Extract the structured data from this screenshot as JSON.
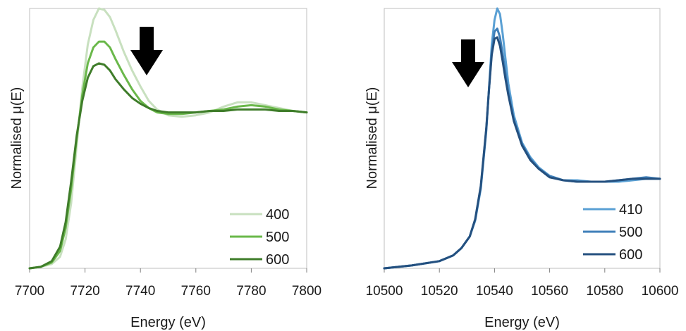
{
  "chart_data": [
    {
      "type": "line",
      "xlabel": "Energy (eV)",
      "ylabel": "Normalised μ(E)",
      "xlim": [
        7700,
        7800
      ],
      "ylim": [
        0,
        1.8
      ],
      "xticks": [
        "7700",
        "7720",
        "7740",
        "7760",
        "7780",
        "7800"
      ],
      "grid": false,
      "legend": "bottom-right",
      "annotation": "down-arrow-near-7742",
      "series": [
        {
          "name": "400",
          "color": "#c8e0bf",
          "x": [
            7700,
            7704,
            7708,
            7711,
            7713,
            7715,
            7717,
            7719,
            7721,
            7723,
            7725,
            7727,
            7729,
            7731,
            7734,
            7737,
            7740,
            7743,
            7746,
            7750,
            7755,
            7760,
            7765,
            7770,
            7775,
            7780,
            7785,
            7790,
            7795,
            7800
          ],
          "y": [
            0.0,
            0.01,
            0.03,
            0.08,
            0.2,
            0.45,
            0.85,
            1.25,
            1.55,
            1.72,
            1.8,
            1.79,
            1.74,
            1.65,
            1.5,
            1.37,
            1.26,
            1.16,
            1.1,
            1.06,
            1.05,
            1.06,
            1.08,
            1.12,
            1.15,
            1.15,
            1.13,
            1.11,
            1.09,
            1.08
          ]
        },
        {
          "name": "500",
          "color": "#6ab84a",
          "x": [
            7700,
            7704,
            7708,
            7711,
            7713,
            7715,
            7717,
            7719,
            7721,
            7723,
            7725,
            7727,
            7729,
            7731,
            7734,
            7737,
            7740,
            7743,
            7746,
            7750,
            7755,
            7760,
            7765,
            7770,
            7775,
            7780,
            7785,
            7790,
            7795,
            7800
          ],
          "y": [
            0.0,
            0.01,
            0.04,
            0.12,
            0.28,
            0.55,
            0.9,
            1.2,
            1.42,
            1.53,
            1.57,
            1.57,
            1.53,
            1.45,
            1.34,
            1.24,
            1.16,
            1.11,
            1.08,
            1.07,
            1.07,
            1.08,
            1.09,
            1.1,
            1.12,
            1.13,
            1.12,
            1.1,
            1.09,
            1.08
          ]
        },
        {
          "name": "600",
          "color": "#3f7d2a",
          "x": [
            7700,
            7704,
            7708,
            7711,
            7713,
            7715,
            7717,
            7719,
            7721,
            7723,
            7725,
            7727,
            7729,
            7731,
            7734,
            7737,
            7740,
            7743,
            7746,
            7750,
            7755,
            7760,
            7765,
            7770,
            7775,
            7780,
            7785,
            7790,
            7795,
            7800
          ],
          "y": [
            0.0,
            0.01,
            0.05,
            0.15,
            0.32,
            0.6,
            0.92,
            1.16,
            1.32,
            1.4,
            1.42,
            1.41,
            1.37,
            1.31,
            1.24,
            1.18,
            1.14,
            1.11,
            1.09,
            1.08,
            1.08,
            1.08,
            1.09,
            1.09,
            1.1,
            1.1,
            1.1,
            1.09,
            1.09,
            1.08
          ]
        }
      ]
    },
    {
      "type": "line",
      "xlabel": "Energy (eV)",
      "ylabel": "Normalised μ(E)",
      "xlim": [
        10500,
        10600
      ],
      "ylim": [
        0,
        1.8
      ],
      "xticks": [
        "10500",
        "10520",
        "10540",
        "10560",
        "10580",
        "10600"
      ],
      "grid": false,
      "legend": "bottom-right",
      "annotation": "down-arrow-near-10530",
      "series": [
        {
          "name": "410",
          "color": "#5aa0d4",
          "x": [
            10500,
            10510,
            10520,
            10525,
            10528,
            10531,
            10533,
            10535,
            10537,
            10538,
            10539,
            10540,
            10541,
            10542,
            10543,
            10544,
            10545,
            10547,
            10550,
            10553,
            10556,
            10560,
            10565,
            10570,
            10575,
            10580,
            10585,
            10590,
            10595,
            10600
          ],
          "y": [
            0.0,
            0.02,
            0.05,
            0.09,
            0.14,
            0.22,
            0.33,
            0.55,
            0.95,
            1.25,
            1.55,
            1.72,
            1.8,
            1.76,
            1.62,
            1.45,
            1.28,
            1.06,
            0.87,
            0.77,
            0.7,
            0.64,
            0.61,
            0.61,
            0.6,
            0.6,
            0.6,
            0.61,
            0.62,
            0.62
          ]
        },
        {
          "name": "500",
          "color": "#3f7fb9",
          "x": [
            10500,
            10510,
            10520,
            10525,
            10528,
            10531,
            10533,
            10535,
            10537,
            10538,
            10539,
            10540,
            10541,
            10542,
            10543,
            10544,
            10545,
            10547,
            10550,
            10553,
            10556,
            10560,
            10565,
            10570,
            10575,
            10580,
            10585,
            10590,
            10595,
            10600
          ],
          "y": [
            0.0,
            0.02,
            0.05,
            0.09,
            0.14,
            0.22,
            0.34,
            0.56,
            0.96,
            1.24,
            1.5,
            1.64,
            1.66,
            1.6,
            1.48,
            1.35,
            1.22,
            1.03,
            0.86,
            0.76,
            0.69,
            0.64,
            0.61,
            0.6,
            0.6,
            0.6,
            0.61,
            0.62,
            0.63,
            0.62
          ]
        },
        {
          "name": "600",
          "color": "#24507f",
          "x": [
            10500,
            10510,
            10520,
            10525,
            10528,
            10531,
            10533,
            10535,
            10537,
            10538,
            10539,
            10540,
            10541,
            10542,
            10543,
            10544,
            10545,
            10547,
            10550,
            10553,
            10556,
            10560,
            10565,
            10570,
            10575,
            10580,
            10585,
            10590,
            10595,
            10600
          ],
          "y": [
            0.0,
            0.02,
            0.05,
            0.09,
            0.14,
            0.22,
            0.34,
            0.57,
            0.97,
            1.24,
            1.48,
            1.59,
            1.6,
            1.54,
            1.43,
            1.31,
            1.2,
            1.02,
            0.85,
            0.75,
            0.69,
            0.63,
            0.61,
            0.6,
            0.6,
            0.6,
            0.61,
            0.62,
            0.62,
            0.62
          ]
        }
      ]
    }
  ]
}
